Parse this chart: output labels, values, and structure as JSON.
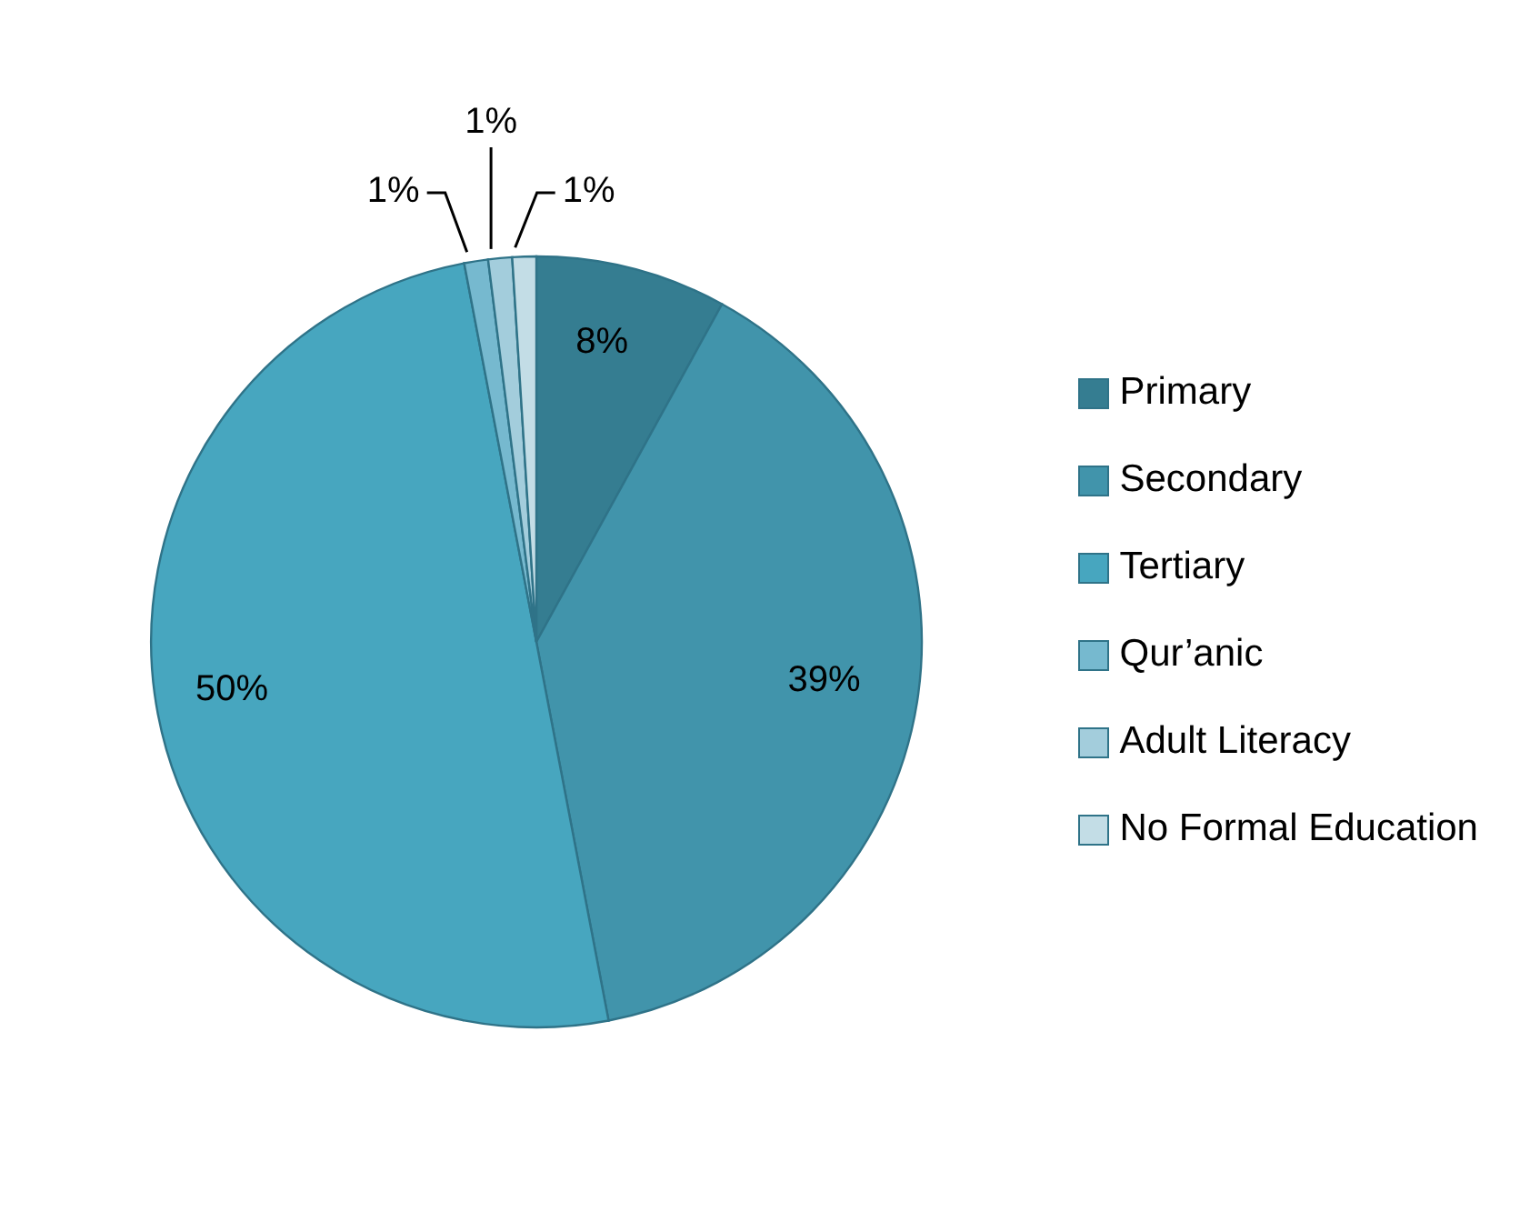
{
  "chart_data": {
    "type": "pie",
    "categories": [
      "Primary",
      "Secondary",
      "Tertiary",
      "Qur’anic",
      "Adult Literacy",
      "No Formal Education"
    ],
    "values": [
      8,
      39,
      50,
      1,
      1,
      1
    ],
    "value_labels": [
      "8%",
      "39%",
      "50%",
      "1%",
      "1%",
      "1%"
    ],
    "colors": [
      "#357d91",
      "#4194ab",
      "#47a6bf",
      "#76b9cf",
      "#a3cddc",
      "#c3dde6"
    ],
    "legend": "right"
  }
}
